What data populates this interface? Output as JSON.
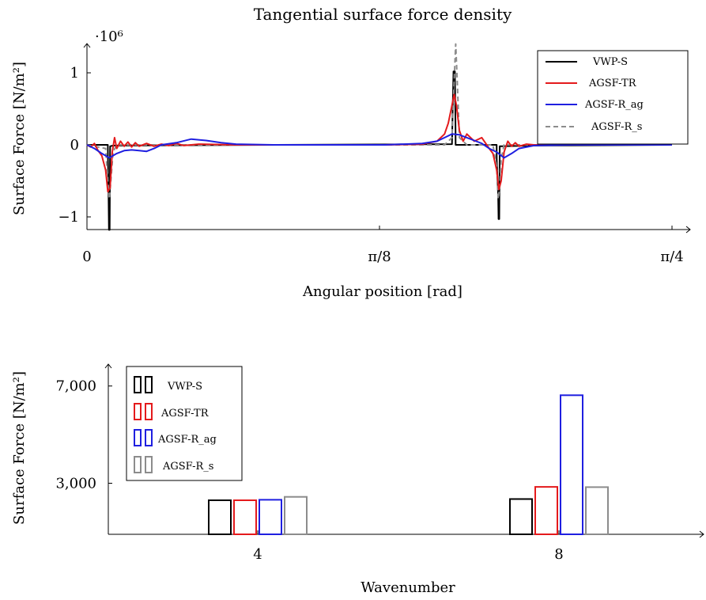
{
  "chart_data": [
    {
      "type": "line",
      "title": "Tangential surface force density",
      "xlabel": "Angular position [rad]",
      "ylabel": "Surface Force [N/m²]",
      "y_multiplier": "·10⁶",
      "xlim": [
        0,
        0.7854
      ],
      "ylim": [
        -1.2,
        1.4
      ],
      "xticks": [
        {
          "value": 0,
          "label": "0"
        },
        {
          "value": 0.3927,
          "label": "π/8"
        },
        {
          "value": 0.7854,
          "label": "π/4"
        }
      ],
      "yticks": [
        {
          "value": -1,
          "label": "−1"
        },
        {
          "value": 0,
          "label": "0"
        },
        {
          "value": 1,
          "label": "1"
        }
      ],
      "legend_position": "top-right",
      "series": [
        {
          "name": "VWP-S",
          "color": "#000000",
          "dash": "solid",
          "x": [
            0,
            0.028,
            0.0281,
            0.029,
            0.0295,
            0.0305,
            0.031,
            0.0311,
            0.035,
            0.49,
            0.492,
            0.494,
            0.4948,
            0.4949,
            0.4965,
            0.4966,
            0.55,
            0.5501,
            0.552,
            0.5525,
            0.5535,
            0.554,
            0.5541,
            0.6,
            0.7854
          ],
          "y": [
            0,
            0,
            -0.15,
            -0.7,
            -1.18,
            -1.18,
            -0.15,
            -0.02,
            -0.01,
            0.01,
            1.02,
            1.02,
            0.2,
            0.0,
            0.0,
            0.0,
            0.0,
            -0.2,
            -0.7,
            -1.03,
            -1.03,
            -0.2,
            -0.02,
            -0.01,
            0
          ]
        },
        {
          "name": "AGSF-TR",
          "color": "#e41a1c",
          "dash": "solid",
          "x": [
            0,
            0.005,
            0.01,
            0.015,
            0.02,
            0.025,
            0.028,
            0.031,
            0.034,
            0.037,
            0.04,
            0.045,
            0.05,
            0.055,
            0.06,
            0.065,
            0.07,
            0.08,
            0.09,
            0.1,
            0.11,
            0.12,
            0.13,
            0.15,
            0.2,
            0.3,
            0.4,
            0.45,
            0.47,
            0.48,
            0.485,
            0.49,
            0.493,
            0.496,
            0.5,
            0.505,
            0.51,
            0.52,
            0.53,
            0.54,
            0.545,
            0.55,
            0.553,
            0.556,
            0.56,
            0.565,
            0.57,
            0.575,
            0.58,
            0.59,
            0.6,
            0.62,
            0.65,
            0.7,
            0.7854
          ],
          "y": [
            0,
            -0.03,
            0.02,
            -0.08,
            -0.15,
            -0.35,
            -0.65,
            -0.6,
            -0.1,
            0.1,
            -0.05,
            0.05,
            -0.02,
            0.04,
            -0.03,
            0.03,
            -0.02,
            0.02,
            -0.02,
            0.01,
            -0.01,
            0.02,
            -0.01,
            0.01,
            0,
            0,
            0,
            0.01,
            0.05,
            0.15,
            0.3,
            0.55,
            0.7,
            0.55,
            0.2,
            0.05,
            0.15,
            0.05,
            0.1,
            -0.05,
            -0.12,
            -0.35,
            -0.62,
            -0.5,
            -0.1,
            0.05,
            -0.02,
            0.03,
            -0.02,
            0.01,
            0,
            0,
            0,
            0,
            0
          ]
        },
        {
          "name": "AGSF-R_ag",
          "color": "#1f1fe0",
          "dash": "solid",
          "x": [
            0,
            0.01,
            0.02,
            0.03,
            0.04,
            0.05,
            0.06,
            0.07,
            0.08,
            0.09,
            0.1,
            0.12,
            0.14,
            0.16,
            0.18,
            0.2,
            0.25,
            0.3,
            0.35,
            0.4,
            0.45,
            0.47,
            0.48,
            0.49,
            0.5,
            0.51,
            0.52,
            0.53,
            0.54,
            0.55,
            0.56,
            0.57,
            0.58,
            0.6,
            0.65,
            0.7,
            0.7854
          ],
          "y": [
            0,
            -0.05,
            -0.12,
            -0.18,
            -0.12,
            -0.08,
            -0.07,
            -0.08,
            -0.09,
            -0.05,
            0,
            0.03,
            0.08,
            0.06,
            0.03,
            0.01,
            0,
            0,
            0,
            0,
            0.02,
            0.05,
            0.1,
            0.15,
            0.14,
            0.1,
            0.06,
            0.02,
            -0.05,
            -0.1,
            -0.18,
            -0.12,
            -0.05,
            -0.01,
            0,
            0,
            0
          ]
        },
        {
          "name": "AGSF-R_s",
          "color": "#8c8c8c",
          "dash": "dashed",
          "x": [
            0,
            0.025,
            0.028,
            0.03,
            0.032,
            0.035,
            0.04,
            0.48,
            0.49,
            0.493,
            0.495,
            0.497,
            0.5,
            0.51,
            0.545,
            0.55,
            0.552,
            0.554,
            0.556,
            0.56,
            0.7854
          ],
          "y": [
            0,
            -0.05,
            -0.5,
            -0.75,
            -0.5,
            -0.1,
            0,
            0,
            0.1,
            0.9,
            1.4,
            0.9,
            0.1,
            0,
            0,
            -0.3,
            -0.75,
            -0.6,
            -0.2,
            0,
            0
          ]
        }
      ]
    },
    {
      "type": "bar",
      "xlabel": "Wavenumber",
      "ylabel": "Surface Force [N/m²]",
      "categories": [
        "4",
        "8"
      ],
      "ylim": [
        900,
        7900
      ],
      "yticks": [
        {
          "value": 3000,
          "label": "3,000"
        },
        {
          "value": 7000,
          "label": "7,000"
        }
      ],
      "legend_position": "top-left",
      "series": [
        {
          "name": "VWP-S",
          "color": "#000000",
          "values": [
            2300,
            2350
          ]
        },
        {
          "name": "AGSF-TR",
          "color": "#e41a1c",
          "values": [
            2300,
            2850
          ]
        },
        {
          "name": "AGSF-R_ag",
          "color": "#1f1fe0",
          "values": [
            2320,
            6620
          ]
        },
        {
          "name": "AGSF-R_s",
          "color": "#8c8c8c",
          "values": [
            2440,
            2840
          ]
        }
      ]
    }
  ]
}
